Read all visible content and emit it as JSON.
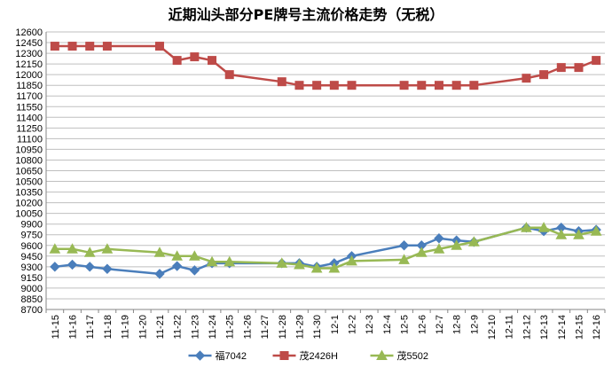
{
  "chart_data": {
    "type": "line",
    "title": "近期汕头部分PE牌号主流价格走势（无税）",
    "xlabel": "",
    "ylabel": "",
    "ylim": [
      8700,
      12600
    ],
    "ytick_step": 150,
    "grid": true,
    "legend_position": "bottom",
    "categories": [
      "11-15",
      "11-16",
      "11-17",
      "11-18",
      "11-19",
      "11-20",
      "11-21",
      "11-22",
      "11-23",
      "11-24",
      "11-25",
      "11-26",
      "11-27",
      "11-28",
      "11-29",
      "11-30",
      "12-1",
      "12-2",
      "12-3",
      "12-4",
      "12-5",
      "12-6",
      "12-7",
      "12-8",
      "12-9",
      "12-10",
      "12-11",
      "12-12",
      "12-13",
      "12-14",
      "12-15",
      "12-16"
    ],
    "series": [
      {
        "name": "福7042",
        "color": "#4a7ebb",
        "marker": "diamond",
        "values": [
          9300,
          9330,
          9300,
          9270,
          null,
          null,
          9200,
          9310,
          9250,
          9350,
          9350,
          null,
          null,
          9350,
          9350,
          9300,
          9350,
          9450,
          null,
          null,
          9600,
          9600,
          9700,
          9670,
          9650,
          null,
          null,
          9850,
          9800,
          9850,
          9800,
          9820
        ]
      },
      {
        "name": "茂2426H",
        "color": "#be4b48",
        "marker": "square",
        "values": [
          12400,
          12400,
          12400,
          12400,
          null,
          null,
          12400,
          12200,
          12250,
          12200,
          12000,
          null,
          null,
          11900,
          11850,
          11850,
          11850,
          11850,
          null,
          null,
          11850,
          11850,
          11850,
          11850,
          11850,
          null,
          null,
          11950,
          12000,
          12100,
          12100,
          12200
        ]
      },
      {
        "name": "茂5502",
        "color": "#98b954",
        "marker": "triangle",
        "values": [
          9550,
          9550,
          9500,
          9550,
          null,
          null,
          9500,
          9450,
          9450,
          9370,
          9370,
          null,
          null,
          9350,
          9330,
          9280,
          9280,
          9380,
          null,
          null,
          9400,
          9500,
          9550,
          9600,
          9650,
          null,
          null,
          9850,
          9850,
          9750,
          9750,
          9800
        ]
      }
    ]
  }
}
